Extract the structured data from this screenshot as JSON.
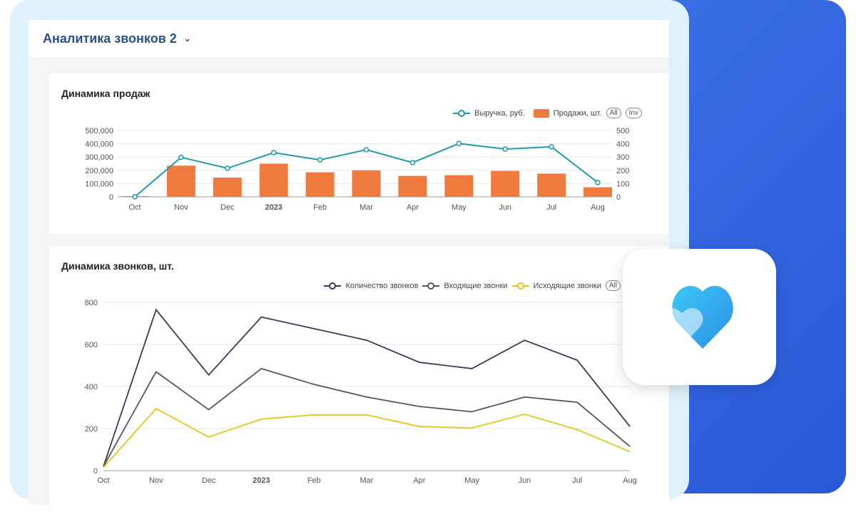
{
  "header": {
    "title": "Аналитика звонков 2"
  },
  "colors": {
    "bars": "#f07a3e",
    "revenue": "#1e9aa8",
    "total": "#3a3a55",
    "incoming": "#555560",
    "outgoing": "#e6c419"
  },
  "chart_data": [
    {
      "type": "bar",
      "title": "Динамика продаж",
      "categories": [
        "Oct",
        "Nov",
        "Dec",
        "2023",
        "Feb",
        "Mar",
        "Apr",
        "May",
        "Jun",
        "Jul",
        "Aug"
      ],
      "series": [
        {
          "name": "Выручка, руб.",
          "type": "line",
          "axis": "left",
          "values": [
            0,
            298000,
            215000,
            333000,
            278000,
            355000,
            258000,
            402000,
            360000,
            377000,
            108000
          ]
        },
        {
          "name": "Продажи, шт.",
          "type": "bar",
          "axis": "right",
          "values": [
            5,
            235,
            145,
            250,
            185,
            200,
            158,
            163,
            195,
            175,
            72
          ]
        }
      ],
      "yleft": {
        "ticks": [
          "0",
          "100,000",
          "200,000",
          "300,000",
          "400,000",
          "500,000"
        ],
        "lim": [
          0,
          500000
        ]
      },
      "yright": {
        "ticks": [
          "0",
          "100",
          "200",
          "300",
          "400",
          "500"
        ],
        "lim": [
          0,
          500
        ]
      },
      "buttons": [
        "All",
        "Inv"
      ],
      "legend": "top-right",
      "grid": true
    },
    {
      "type": "line",
      "title": "Динамика звонков, шт.",
      "categories": [
        "Oct",
        "Nov",
        "Dec",
        "2023",
        "Feb",
        "Mar",
        "Apr",
        "May",
        "Jun",
        "Jul",
        "Aug"
      ],
      "series": [
        {
          "name": "Количество звонков",
          "values": [
            20,
            765,
            455,
            730,
            675,
            620,
            515,
            485,
            620,
            525,
            210
          ]
        },
        {
          "name": "Входящие звонки",
          "values": [
            20,
            470,
            290,
            485,
            410,
            350,
            305,
            280,
            350,
            325,
            115
          ]
        },
        {
          "name": "Исходящие звонки",
          "values": [
            15,
            295,
            160,
            245,
            265,
            265,
            210,
            203,
            268,
            195,
            90
          ]
        }
      ],
      "yticks": [
        "0",
        "200",
        "400",
        "600",
        "800"
      ],
      "ylim": [
        0,
        800
      ],
      "buttons": [
        "All"
      ],
      "legend": "top-right",
      "grid": true
    }
  ]
}
